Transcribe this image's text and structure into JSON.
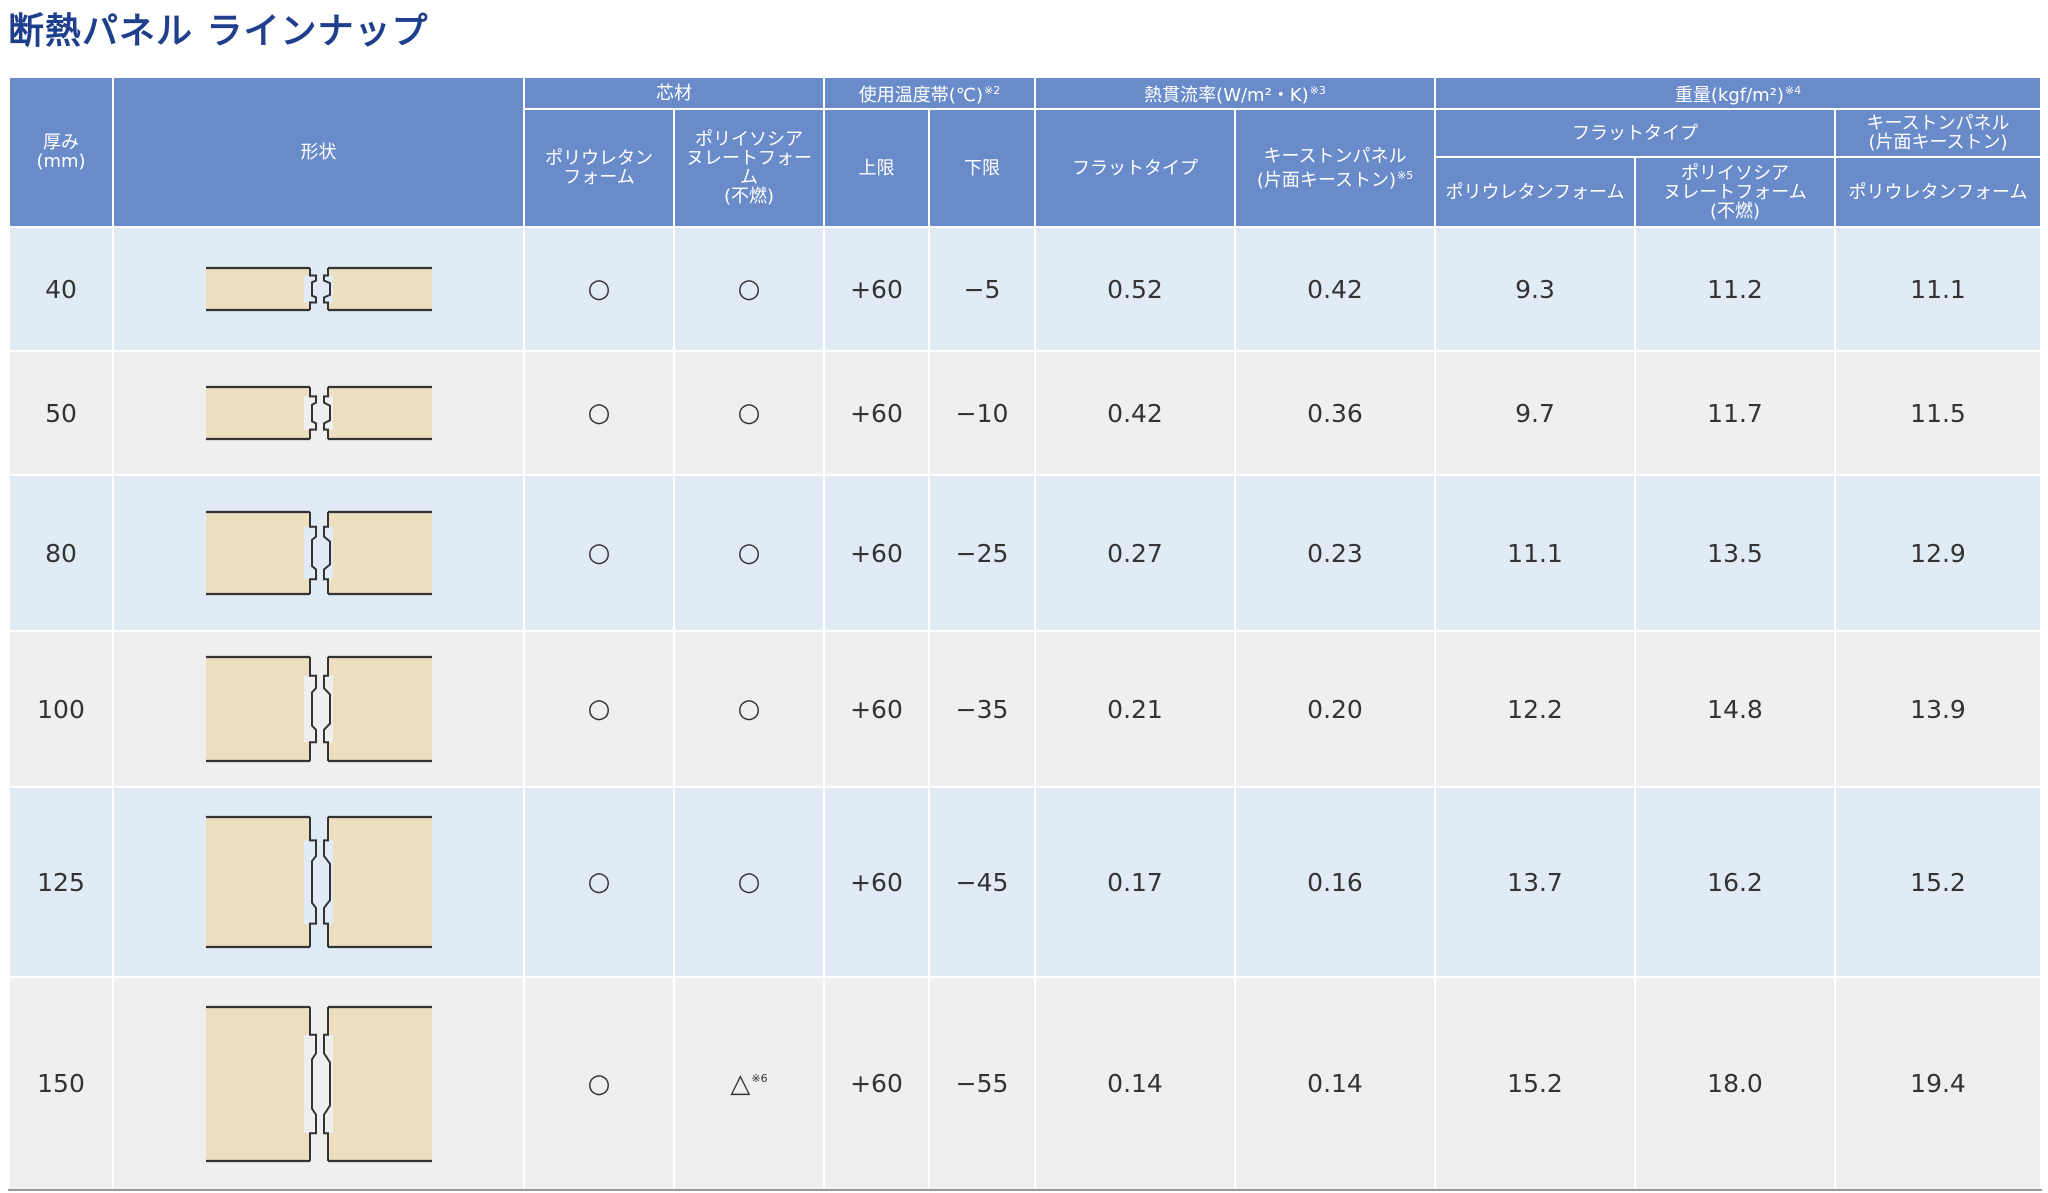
{
  "title": "断熱パネル ラインナップ",
  "table": {
    "headers": {
      "thickness": "厚み\n(mm)",
      "shape": "形状",
      "core": "芯材",
      "core_pu": "ポリウレタン\nフォーム",
      "core_pir": "ポリイソシア\nヌレートフォーム\n(不燃)",
      "temp": "使用温度帯(℃)",
      "temp_note": "※2",
      "temp_upper": "上限",
      "temp_lower": "下限",
      "heat": "熱貫流率(W/m²・K)",
      "heat_note": "※3",
      "heat_flat": "フラットタイプ",
      "heat_keystone": "キーストンパネル\n(片面キーストン)",
      "heat_keystone_note": "※5",
      "weight": "重量(kgf/m²)",
      "weight_note": "※4",
      "weight_flat": "フラットタイプ",
      "weight_keystone": "キーストンパネル\n(片面キーストン)",
      "weight_flat_pu": "ポリウレタンフォーム",
      "weight_flat_pir": "ポリイソシア\nヌレートフォーム\n(不燃)",
      "weight_keystone_pu": "ポリウレタンフォーム"
    },
    "rows": [
      {
        "thickness": "40",
        "pu": "○",
        "pir": "○",
        "pir_note": "",
        "upper": "+60",
        "lower": "−5",
        "u_flat": "0.52",
        "u_keystone": "0.42",
        "w_flat_pu": "9.3",
        "w_flat_pir": "11.2",
        "w_keystone_pu": "11.1",
        "band": "blue"
      },
      {
        "thickness": "50",
        "pu": "○",
        "pir": "○",
        "pir_note": "",
        "upper": "+60",
        "lower": "−10",
        "u_flat": "0.42",
        "u_keystone": "0.36",
        "w_flat_pu": "9.7",
        "w_flat_pir": "11.7",
        "w_keystone_pu": "11.5",
        "band": "gray"
      },
      {
        "thickness": "80",
        "pu": "○",
        "pir": "○",
        "pir_note": "",
        "upper": "+60",
        "lower": "−25",
        "u_flat": "0.27",
        "u_keystone": "0.23",
        "w_flat_pu": "11.1",
        "w_flat_pir": "13.5",
        "w_keystone_pu": "12.9",
        "band": "blue"
      },
      {
        "thickness": "100",
        "pu": "○",
        "pir": "○",
        "pir_note": "",
        "upper": "+60",
        "lower": "−35",
        "u_flat": "0.21",
        "u_keystone": "0.20",
        "w_flat_pu": "12.2",
        "w_flat_pir": "14.8",
        "w_keystone_pu": "13.9",
        "band": "gray"
      },
      {
        "thickness": "125",
        "pu": "○",
        "pir": "○",
        "pir_note": "",
        "upper": "+60",
        "lower": "−45",
        "u_flat": "0.17",
        "u_keystone": "0.16",
        "w_flat_pu": "13.7",
        "w_flat_pir": "16.2",
        "w_keystone_pu": "15.2",
        "band": "blue"
      },
      {
        "thickness": "150",
        "pu": "○",
        "pir": "△",
        "pir_note": "※6",
        "upper": "+60",
        "lower": "−55",
        "u_flat": "0.14",
        "u_keystone": "0.14",
        "w_flat_pu": "15.2",
        "w_flat_pir": "18.0",
        "w_keystone_pu": "19.4",
        "band": "gray"
      }
    ]
  },
  "colors": {
    "title": "#1f3f8c",
    "header_bg": "#6a8bc9",
    "row_blue": "#e1ebf6",
    "row_gray": "#efefef",
    "panel_fill": "#ecdfc0",
    "panel_stroke": "#333333"
  }
}
